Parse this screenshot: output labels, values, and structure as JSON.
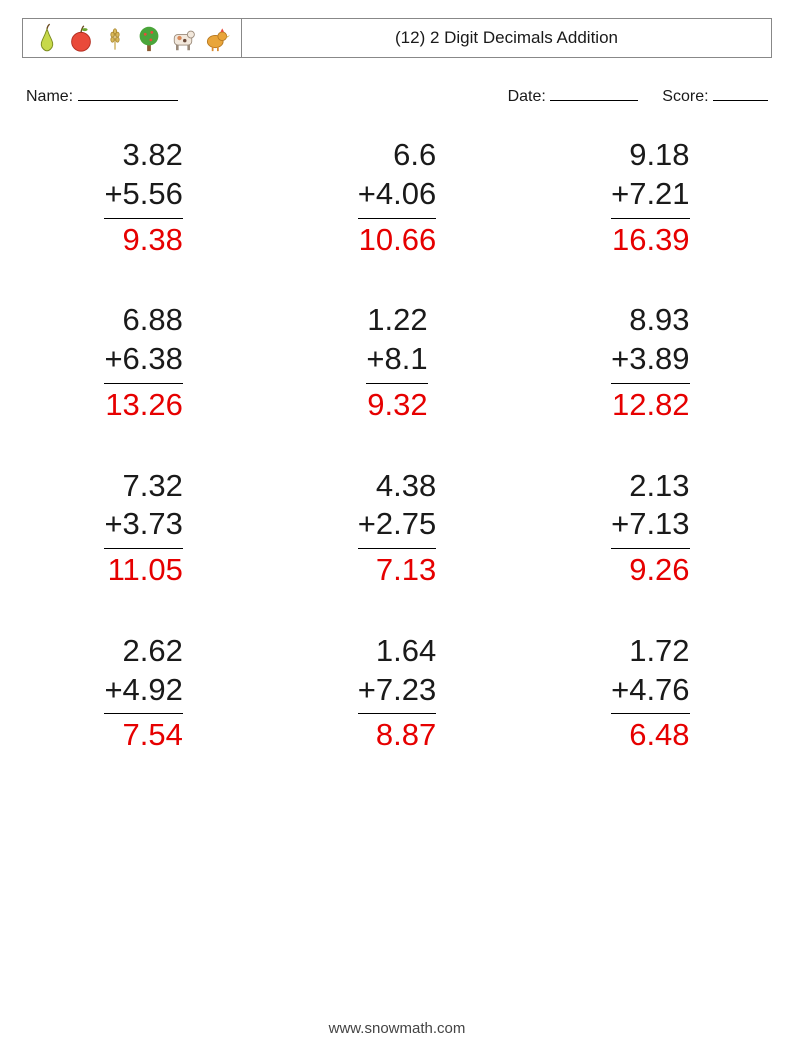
{
  "header": {
    "title": "(12) 2 Digit Decimals Addition",
    "icons": [
      "pear",
      "apple",
      "wheat",
      "tree",
      "cow",
      "chicken"
    ]
  },
  "info": {
    "name_label": "Name:",
    "date_label": "Date:",
    "score_label": "Score:"
  },
  "style": {
    "number_fontsize": 31,
    "answer_color": "#e60000",
    "text_color": "#1a1a1a",
    "border_color": "#888888",
    "background": "#ffffff",
    "columns": 3,
    "rows": 4,
    "line_color": "#000000"
  },
  "problems": [
    {
      "a": "3.82",
      "op": "+",
      "b": "5.56",
      "ans": "9.38"
    },
    {
      "a": "6.6",
      "op": "+",
      "b": "4.06",
      "ans": "10.66"
    },
    {
      "a": "9.18",
      "op": "+",
      "b": "7.21",
      "ans": "16.39"
    },
    {
      "a": "6.88",
      "op": "+",
      "b": "6.38",
      "ans": "13.26"
    },
    {
      "a": "1.22",
      "op": "+",
      "b": "8.1",
      "ans": "9.32"
    },
    {
      "a": "8.93",
      "op": "+",
      "b": "3.89",
      "ans": "12.82"
    },
    {
      "a": "7.32",
      "op": "+",
      "b": "3.73",
      "ans": "11.05"
    },
    {
      "a": "4.38",
      "op": "+",
      "b": "2.75",
      "ans": "7.13"
    },
    {
      "a": "2.13",
      "op": "+",
      "b": "7.13",
      "ans": "9.26"
    },
    {
      "a": "2.62",
      "op": "+",
      "b": "4.92",
      "ans": "7.54"
    },
    {
      "a": "1.64",
      "op": "+",
      "b": "7.23",
      "ans": "8.87"
    },
    {
      "a": "1.72",
      "op": "+",
      "b": "4.76",
      "ans": "6.48"
    }
  ],
  "footer": {
    "text": "www.snowmath.com"
  },
  "watermark": {
    "text": ""
  }
}
